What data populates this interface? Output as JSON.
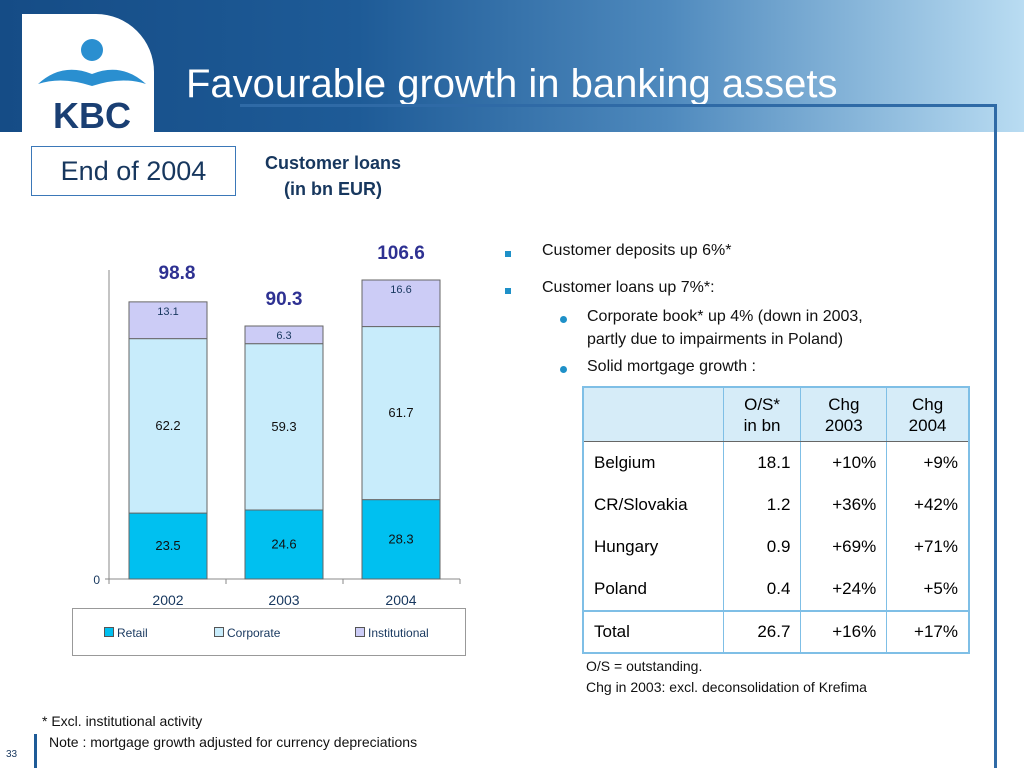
{
  "header": {
    "title": "Favourable growth in banking assets",
    "logo_text": "KBC"
  },
  "period_box": "End of 2004",
  "chart_header": {
    "line1": "Customer loans",
    "line2": "(in bn EUR)"
  },
  "chart_data": {
    "type": "bar",
    "stacked": true,
    "categories": [
      "2002",
      "2003",
      "2004"
    ],
    "series": [
      {
        "name": "Retail",
        "values": [
          23.5,
          24.6,
          28.3
        ],
        "color": "#00c0f0"
      },
      {
        "name": "Corporate",
        "values": [
          62.2,
          59.3,
          61.7
        ],
        "color": "#c8ecfb"
      },
      {
        "name": "Institutional",
        "values": [
          13.1,
          6.3,
          16.6
        ],
        "color": "#ccccf6"
      }
    ],
    "totals": [
      98.8,
      90.3,
      106.6
    ],
    "y_tick_labels": [
      "0"
    ],
    "ylim": [
      0,
      106.6
    ],
    "grid": false,
    "legend": "bottom"
  },
  "bullets": {
    "deposits": "Customer deposits up 6%*",
    "loans": "Customer loans up 7%*:",
    "sub1_line1": "Corporate book* up 4% (down in 2003,",
    "sub1_line2": "partly due to impairments in Poland)",
    "sub2": "Solid mortgage growth :"
  },
  "mortgage_table": {
    "headers": [
      {
        "l1": "",
        "l2": ""
      },
      {
        "l1": "O/S*",
        "l2": "in bn"
      },
      {
        "l1": "Chg",
        "l2": "2003"
      },
      {
        "l1": "Chg",
        "l2": "2004"
      }
    ],
    "rows": [
      [
        "Belgium",
        "18.1",
        "+10%",
        "+9%"
      ],
      [
        "CR/Slovakia",
        "1.2",
        "+36%",
        "+42%"
      ],
      [
        "Hungary",
        "0.9",
        "+69%",
        "+71%"
      ],
      [
        "Poland",
        "0.4",
        "+24%",
        "+5%"
      ]
    ],
    "total": [
      "Total",
      "26.7",
      "+16%",
      "+17%"
    ]
  },
  "notes": {
    "line1": "O/S = outstanding.",
    "line2": "Chg in 2003: excl. deconsolidation of Krefima"
  },
  "footnotes": {
    "line1": "* Excl. institutional activity",
    "line2": "Note : mortgage growth adjusted for currency depreciations"
  },
  "page_number": "33",
  "colors": {
    "accent": "#1e5b97",
    "title_text": "#17375e",
    "total_label": "#2e3192"
  }
}
